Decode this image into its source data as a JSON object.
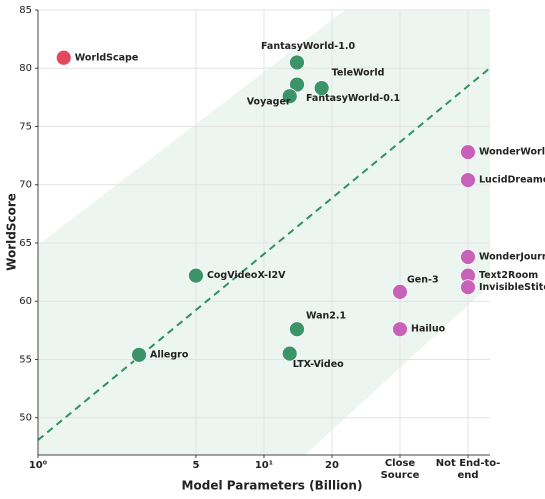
{
  "chart_data": {
    "type": "scatter",
    "x_label": "Model Parameters (Billion)",
    "y_label": "WorldScore",
    "xlog": true,
    "grid": true,
    "xlim": [
      1,
      20
    ],
    "xticks": [
      {
        "value": 1,
        "label": "10⁰"
      },
      5,
      {
        "value": 10,
        "label": "10¹"
      },
      20
    ],
    "x_categories": [
      "Close Source",
      "Not End-to-end"
    ],
    "ylim": [
      46.8,
      85
    ],
    "yticks": [
      50,
      55,
      60,
      65,
      70,
      75,
      80,
      85
    ],
    "points": [
      {
        "label": "WorldScape",
        "x": 1.3,
        "y": 80.9,
        "color": "#e2485e"
      },
      {
        "label": "FantasyWorld-1.0",
        "x": 14,
        "y": 80.5,
        "color": "#3a9467"
      },
      {
        "label": "TeleWorld",
        "x": 18,
        "y": 78.3,
        "color": "#3a9467"
      },
      {
        "label": "FantasyWorld-0.1",
        "x": 14,
        "y": 78.6,
        "color": "#3a9467"
      },
      {
        "label": "Voyager",
        "x": 13,
        "y": 77.6,
        "color": "#3a9467"
      },
      {
        "label": "CogVideoX-I2V",
        "x": 5,
        "y": 62.2,
        "color": "#3a9467"
      },
      {
        "label": "Wan2.1",
        "x": 14,
        "y": 57.6,
        "color": "#3a9467"
      },
      {
        "label": "LTX-Video",
        "x": 13,
        "y": 55.5,
        "color": "#3a9467"
      },
      {
        "label": "Allegro",
        "x": 2.8,
        "y": 55.4,
        "color": "#3a9467"
      },
      {
        "label": "Gen-3",
        "x": "Close Source",
        "y": 60.8,
        "color": "#c862b8"
      },
      {
        "label": "Hailuo",
        "x": "Close Source",
        "y": 57.6,
        "color": "#c862b8"
      },
      {
        "label": "WonderWorld",
        "x": "Not End-to-end",
        "y": 72.8,
        "color": "#c862b8"
      },
      {
        "label": "LucidDreamer",
        "x": "Not End-to-end",
        "y": 70.4,
        "color": "#c862b8"
      },
      {
        "label": "WonderJourney",
        "x": "Not End-to-end",
        "y": 63.8,
        "color": "#c862b8"
      },
      {
        "label": "Text2Room",
        "x": "Not End-to-end",
        "y": 62.2,
        "color": "#c862b8"
      },
      {
        "label": "InvisibleStitch",
        "x": "Not End-to-end",
        "y": 61.2,
        "color": "#c862b8"
      }
    ]
  }
}
